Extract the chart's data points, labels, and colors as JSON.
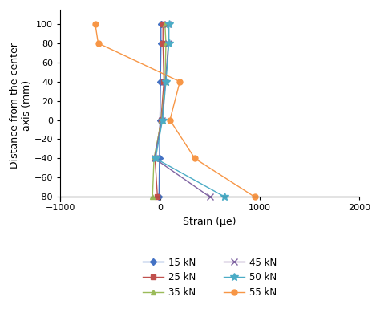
{
  "title": "",
  "xlabel": "Strain (μe)",
  "ylabel": "Distance from the center\naxis (mm)",
  "xlim": [
    -1000,
    2000
  ],
  "ylim": [
    -85,
    115
  ],
  "yticks": [
    100,
    80,
    60,
    40,
    20,
    0,
    -20,
    -40,
    -60,
    -80
  ],
  "xticks": [
    -1000,
    0,
    1000,
    2000
  ],
  "series": [
    {
      "label": "15 kN",
      "color": "#4472C4",
      "marker": "D",
      "markersize": 4,
      "y": [
        100,
        80,
        40,
        0,
        -40,
        -80
      ],
      "x": [
        10,
        10,
        5,
        0,
        -5,
        -10
      ]
    },
    {
      "label": "25 kN",
      "color": "#C0504D",
      "marker": "s",
      "markersize": 4,
      "y": [
        100,
        80,
        40,
        0,
        -40,
        -80
      ],
      "x": [
        30,
        30,
        40,
        10,
        -50,
        -25
      ]
    },
    {
      "label": "35 kN",
      "color": "#9BBB59",
      "marker": "^",
      "markersize": 5,
      "y": [
        100,
        80,
        40,
        0,
        -40,
        -80
      ],
      "x": [
        50,
        60,
        50,
        15,
        -60,
        -75
      ]
    },
    {
      "label": "45 kN",
      "color": "#8064A2",
      "marker": "x",
      "markersize": 6,
      "y": [
        100,
        80,
        40,
        0,
        -40,
        -80
      ],
      "x": [
        80,
        85,
        55,
        20,
        -55,
        500
      ]
    },
    {
      "label": "50 kN",
      "color": "#4BACC6",
      "marker": "*",
      "markersize": 7,
      "y": [
        100,
        80,
        40,
        0,
        -40,
        -80
      ],
      "x": [
        90,
        90,
        60,
        25,
        -45,
        650
      ]
    },
    {
      "label": "55 kN",
      "color": "#F79646",
      "marker": "o",
      "markersize": 5,
      "y": [
        100,
        80,
        40,
        0,
        -40,
        -80
      ],
      "x": [
        -650,
        -620,
        200,
        100,
        350,
        950
      ]
    }
  ],
  "legend_ncol": 2,
  "figure_width": 4.74,
  "figure_height": 4.05,
  "dpi": 100,
  "background_color": "#ffffff",
  "tick_fontsize": 8,
  "label_fontsize": 9,
  "linewidth": 1.0
}
